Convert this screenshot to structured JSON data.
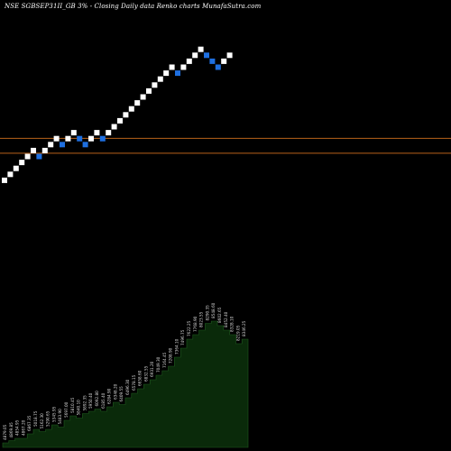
{
  "chart_data": {
    "type": "renko",
    "title": "NSE SGBSEP31II_GB 3% -  Closing Daily data  Renko  charts MunafaSutra.com",
    "bricks": [
      {
        "v": 1,
        "dir": "up"
      },
      {
        "v": 2,
        "dir": "up"
      },
      {
        "v": 3,
        "dir": "up"
      },
      {
        "v": 4,
        "dir": "up"
      },
      {
        "v": 5,
        "dir": "up"
      },
      {
        "v": 6,
        "dir": "up"
      },
      {
        "v": 5,
        "dir": "down"
      },
      {
        "v": 6,
        "dir": "up"
      },
      {
        "v": 7,
        "dir": "up"
      },
      {
        "v": 8,
        "dir": "up"
      },
      {
        "v": 7,
        "dir": "down"
      },
      {
        "v": 8,
        "dir": "up"
      },
      {
        "v": 9,
        "dir": "up"
      },
      {
        "v": 8,
        "dir": "down"
      },
      {
        "v": 7,
        "dir": "down"
      },
      {
        "v": 8,
        "dir": "up"
      },
      {
        "v": 9,
        "dir": "up"
      },
      {
        "v": 8,
        "dir": "down"
      },
      {
        "v": 9,
        "dir": "up"
      },
      {
        "v": 10,
        "dir": "up"
      },
      {
        "v": 11,
        "dir": "up"
      },
      {
        "v": 12,
        "dir": "up"
      },
      {
        "v": 13,
        "dir": "up"
      },
      {
        "v": 14,
        "dir": "up"
      },
      {
        "v": 15,
        "dir": "up"
      },
      {
        "v": 16,
        "dir": "up"
      },
      {
        "v": 17,
        "dir": "up"
      },
      {
        "v": 18,
        "dir": "up"
      },
      {
        "v": 19,
        "dir": "up"
      },
      {
        "v": 20,
        "dir": "up"
      },
      {
        "v": 19,
        "dir": "down"
      },
      {
        "v": 20,
        "dir": "up"
      },
      {
        "v": 21,
        "dir": "up"
      },
      {
        "v": 22,
        "dir": "up"
      },
      {
        "v": 23,
        "dir": "up"
      },
      {
        "v": 22,
        "dir": "down"
      },
      {
        "v": 21,
        "dir": "down"
      },
      {
        "v": 20,
        "dir": "down"
      },
      {
        "v": 21,
        "dir": "up"
      },
      {
        "v": 22,
        "dir": "up"
      }
    ],
    "reference_lines": [
      8.5,
      6
    ],
    "volume": [
      2,
      3,
      4,
      4,
      6,
      8,
      7,
      8,
      10,
      9,
      12,
      14,
      13,
      15,
      16,
      17,
      16,
      18,
      20,
      19,
      22,
      24,
      26,
      28,
      30,
      32,
      34,
      36,
      40,
      44,
      48,
      50,
      52,
      55,
      56,
      54,
      52,
      50,
      46,
      48
    ],
    "volume_labels": [
      "4879.05",
      "4869.85",
      "4854.95",
      "4867.20",
      "6867.35",
      "5018.75",
      "5162.30",
      "5290.65",
      "5345.95",
      "5483.90",
      "5697.00",
      "5810.45",
      "5840.10",
      "5892.35",
      "5950.40",
      "6092.80",
      "6185.40",
      "6284.90",
      "6348.20",
      "6409.55",
      "6496.30",
      "6578.15",
      "6658.60",
      "6832.55",
      "6931.20",
      "7049.30",
      "7164.45",
      "7208.90",
      "7364.10",
      "7496.75",
      "7622.25",
      "7768.90",
      "8023.55",
      "8290.35",
      "8548.60",
      "8602.65",
      "8452.40",
      "8328.10",
      "8219.05",
      "8346.25"
    ],
    "colors": {
      "background": "#000000",
      "up_brick": "#ffffff",
      "down_brick": "#1e6fe0",
      "ref_line": "#b8621a",
      "volume_fill": "#0a2a0a",
      "volume_edge": "#1f5a1f"
    }
  }
}
